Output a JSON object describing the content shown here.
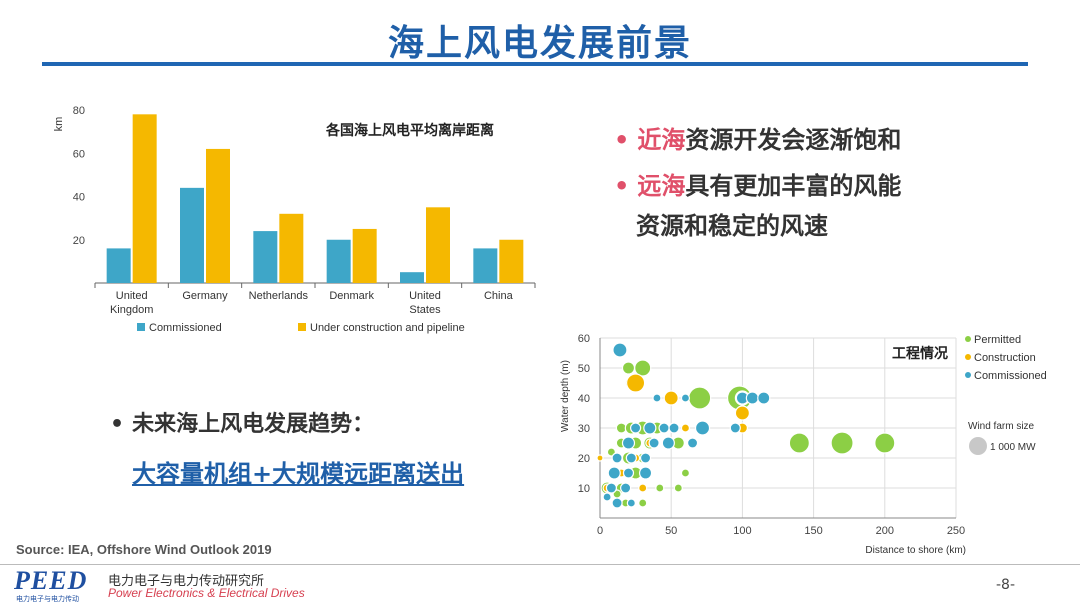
{
  "slide": {
    "title": "海上风电发展前景",
    "source": "Source: IEA, Offshore Wind Outlook 2019",
    "page_number": "-8-"
  },
  "bullets_right": {
    "item1_highlight": "近海",
    "item1_rest": "资源开发会逐渐饱和",
    "item2_highlight": "远海",
    "item2_rest": "具有更加丰富的风能",
    "item2_line2": "资源和稳定的风速"
  },
  "trend": {
    "label": "未来海上风电发展趋势：",
    "link": "大容量机组+大规模远距离送出"
  },
  "footer": {
    "logo_text": "PEED",
    "logo_sub": "电力电子与电力传动",
    "institute_cn": "电力电子与电力传动研究所",
    "institute_en": "Power Electronics & Electrical Drives"
  },
  "colors": {
    "title_blue": "#1f5fa8",
    "accent_red": "#e0506a",
    "commissioned": "#3ea6c8",
    "construction": "#f5b800",
    "permitted": "#8ccf45"
  },
  "chart_data": [
    {
      "type": "bar",
      "title": "各国海上风电平均离岸距离",
      "ylabel": "km",
      "ylim": [
        0,
        80
      ],
      "yticks": [
        20,
        40,
        60,
        80
      ],
      "categories": [
        "United Kingdom",
        "Germany",
        "Netherlands",
        "Denmark",
        "United States",
        "China"
      ],
      "category_lines": [
        [
          "United",
          "Kingdom"
        ],
        [
          "Germany"
        ],
        [
          "Netherlands"
        ],
        [
          "Denmark"
        ],
        [
          "United",
          "States"
        ],
        [
          "China"
        ]
      ],
      "series": [
        {
          "name": "Commissioned",
          "color": "#3ea6c8",
          "values": [
            16,
            44,
            24,
            20,
            5,
            16
          ]
        },
        {
          "name": "Under construction and pipeline",
          "color": "#f5b800",
          "values": [
            78,
            62,
            32,
            25,
            35,
            20
          ]
        }
      ],
      "legend": "bottom"
    },
    {
      "type": "scatter",
      "title": "工程情况",
      "xlabel": "Distance to shore (km)",
      "ylabel": "Water depth (m)",
      "xlim": [
        0,
        250
      ],
      "ylim": [
        0,
        60
      ],
      "xticks": [
        0,
        50,
        100,
        150,
        200,
        250
      ],
      "yticks": [
        10,
        20,
        30,
        40,
        50,
        60
      ],
      "legend": "right",
      "size_legend": {
        "title": "Wind farm size",
        "label": "1 000 MW"
      },
      "series": [
        {
          "name": "Permitted",
          "color": "#8ccf45",
          "points": [
            {
              "x": 20,
              "y": 50,
              "r": 6
            },
            {
              "x": 30,
              "y": 50,
              "r": 8
            },
            {
              "x": 22,
              "y": 45,
              "r": 6
            },
            {
              "x": 70,
              "y": 40,
              "r": 11
            },
            {
              "x": 98,
              "y": 40,
              "r": 12
            },
            {
              "x": 140,
              "y": 25,
              "r": 10
            },
            {
              "x": 170,
              "y": 25,
              "r": 11
            },
            {
              "x": 200,
              "y": 25,
              "r": 10
            },
            {
              "x": 15,
              "y": 30,
              "r": 5
            },
            {
              "x": 22,
              "y": 30,
              "r": 6
            },
            {
              "x": 30,
              "y": 30,
              "r": 7
            },
            {
              "x": 40,
              "y": 30,
              "r": 6
            },
            {
              "x": 15,
              "y": 25,
              "r": 5
            },
            {
              "x": 25,
              "y": 25,
              "r": 6
            },
            {
              "x": 35,
              "y": 25,
              "r": 6
            },
            {
              "x": 55,
              "y": 25,
              "r": 6
            },
            {
              "x": 12,
              "y": 20,
              "r": 5
            },
            {
              "x": 20,
              "y": 20,
              "r": 6
            },
            {
              "x": 30,
              "y": 20,
              "r": 5
            },
            {
              "x": 10,
              "y": 15,
              "r": 5
            },
            {
              "x": 25,
              "y": 15,
              "r": 6
            },
            {
              "x": 5,
              "y": 10,
              "r": 6
            },
            {
              "x": 15,
              "y": 10,
              "r": 5
            },
            {
              "x": 42,
              "y": 10,
              "r": 4
            },
            {
              "x": 55,
              "y": 10,
              "r": 4
            },
            {
              "x": 12,
              "y": 8,
              "r": 4
            },
            {
              "x": 18,
              "y": 5,
              "r": 4
            },
            {
              "x": 30,
              "y": 5,
              "r": 4
            },
            {
              "x": 60,
              "y": 15,
              "r": 4
            },
            {
              "x": 8,
              "y": 22,
              "r": 4
            }
          ]
        },
        {
          "name": "Construction",
          "color": "#f5b800",
          "points": [
            {
              "x": 25,
              "y": 45,
              "r": 9
            },
            {
              "x": 50,
              "y": 40,
              "r": 7
            },
            {
              "x": 100,
              "y": 40,
              "r": 7
            },
            {
              "x": 100,
              "y": 35,
              "r": 7
            },
            {
              "x": 100,
              "y": 30,
              "r": 5
            },
            {
              "x": 60,
              "y": 30,
              "r": 4
            },
            {
              "x": 45,
              "y": 30,
              "r": 4
            },
            {
              "x": 35,
              "y": 25,
              "r": 4
            },
            {
              "x": 25,
              "y": 20,
              "r": 4
            },
            {
              "x": 15,
              "y": 15,
              "r": 4
            },
            {
              "x": 5,
              "y": 10,
              "r": 4
            },
            {
              "x": 0,
              "y": 20,
              "r": 3
            },
            {
              "x": 30,
              "y": 10,
              "r": 4
            }
          ]
        },
        {
          "name": "Commissioned",
          "color": "#3ea6c8",
          "points": [
            {
              "x": 14,
              "y": 56,
              "r": 7
            },
            {
              "x": 100,
              "y": 40,
              "r": 6
            },
            {
              "x": 107,
              "y": 40,
              "r": 6
            },
            {
              "x": 115,
              "y": 40,
              "r": 6
            },
            {
              "x": 72,
              "y": 30,
              "r": 7
            },
            {
              "x": 95,
              "y": 30,
              "r": 5
            },
            {
              "x": 25,
              "y": 30,
              "r": 5
            },
            {
              "x": 35,
              "y": 30,
              "r": 6
            },
            {
              "x": 45,
              "y": 30,
              "r": 5
            },
            {
              "x": 52,
              "y": 30,
              "r": 5
            },
            {
              "x": 20,
              "y": 25,
              "r": 6
            },
            {
              "x": 38,
              "y": 25,
              "r": 5
            },
            {
              "x": 48,
              "y": 25,
              "r": 6
            },
            {
              "x": 65,
              "y": 25,
              "r": 5
            },
            {
              "x": 12,
              "y": 20,
              "r": 5
            },
            {
              "x": 22,
              "y": 20,
              "r": 5
            },
            {
              "x": 32,
              "y": 20,
              "r": 5
            },
            {
              "x": 10,
              "y": 15,
              "r": 6
            },
            {
              "x": 20,
              "y": 15,
              "r": 5
            },
            {
              "x": 32,
              "y": 15,
              "r": 6
            },
            {
              "x": 8,
              "y": 10,
              "r": 5
            },
            {
              "x": 18,
              "y": 10,
              "r": 5
            },
            {
              "x": 5,
              "y": 7,
              "r": 4
            },
            {
              "x": 12,
              "y": 5,
              "r": 5
            },
            {
              "x": 22,
              "y": 5,
              "r": 4
            },
            {
              "x": 60,
              "y": 40,
              "r": 4
            },
            {
              "x": 40,
              "y": 40,
              "r": 4
            }
          ]
        }
      ]
    }
  ]
}
